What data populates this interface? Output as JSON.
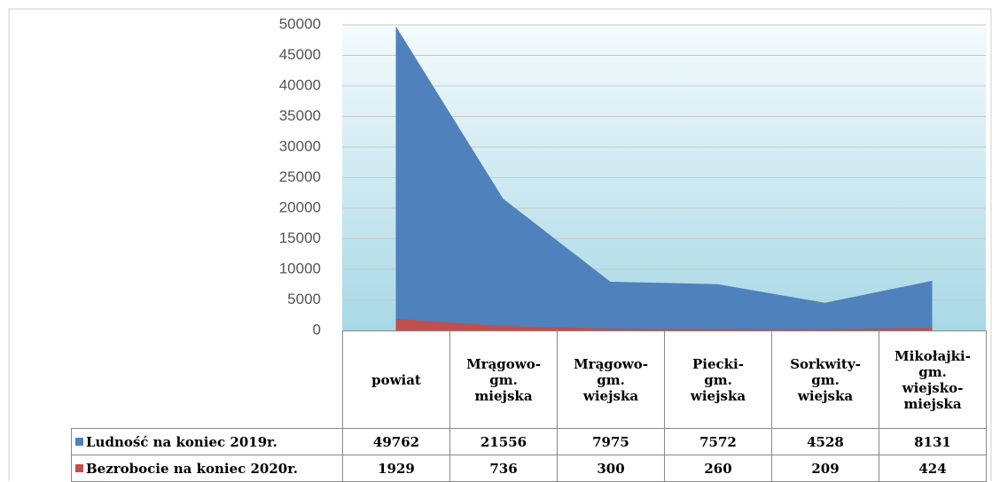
{
  "chart_data": {
    "type": "area",
    "categories": [
      "powiat",
      "Mrągowo-gm. miejska",
      "Mrągowo-gm. wiejska",
      "Piecki-gm. wiejska",
      "Sorkwity-gm. wiejska",
      "Mikołajki-gm. wiejsko-miejska"
    ],
    "series": [
      {
        "name": "Ludność na koniec 2019r.",
        "color": "#4f81bd",
        "values": [
          49762,
          21556,
          7975,
          7572,
          4528,
          8131
        ]
      },
      {
        "name": "Bezrobocie na koniec 2020r.",
        "color": "#c0504d",
        "values": [
          1929,
          736,
          300,
          260,
          209,
          424
        ]
      }
    ],
    "ylim": [
      0,
      50000
    ],
    "yticks": [
      0,
      5000,
      10000,
      15000,
      20000,
      25000,
      30000,
      35000,
      40000,
      45000,
      50000
    ],
    "grid": true
  }
}
